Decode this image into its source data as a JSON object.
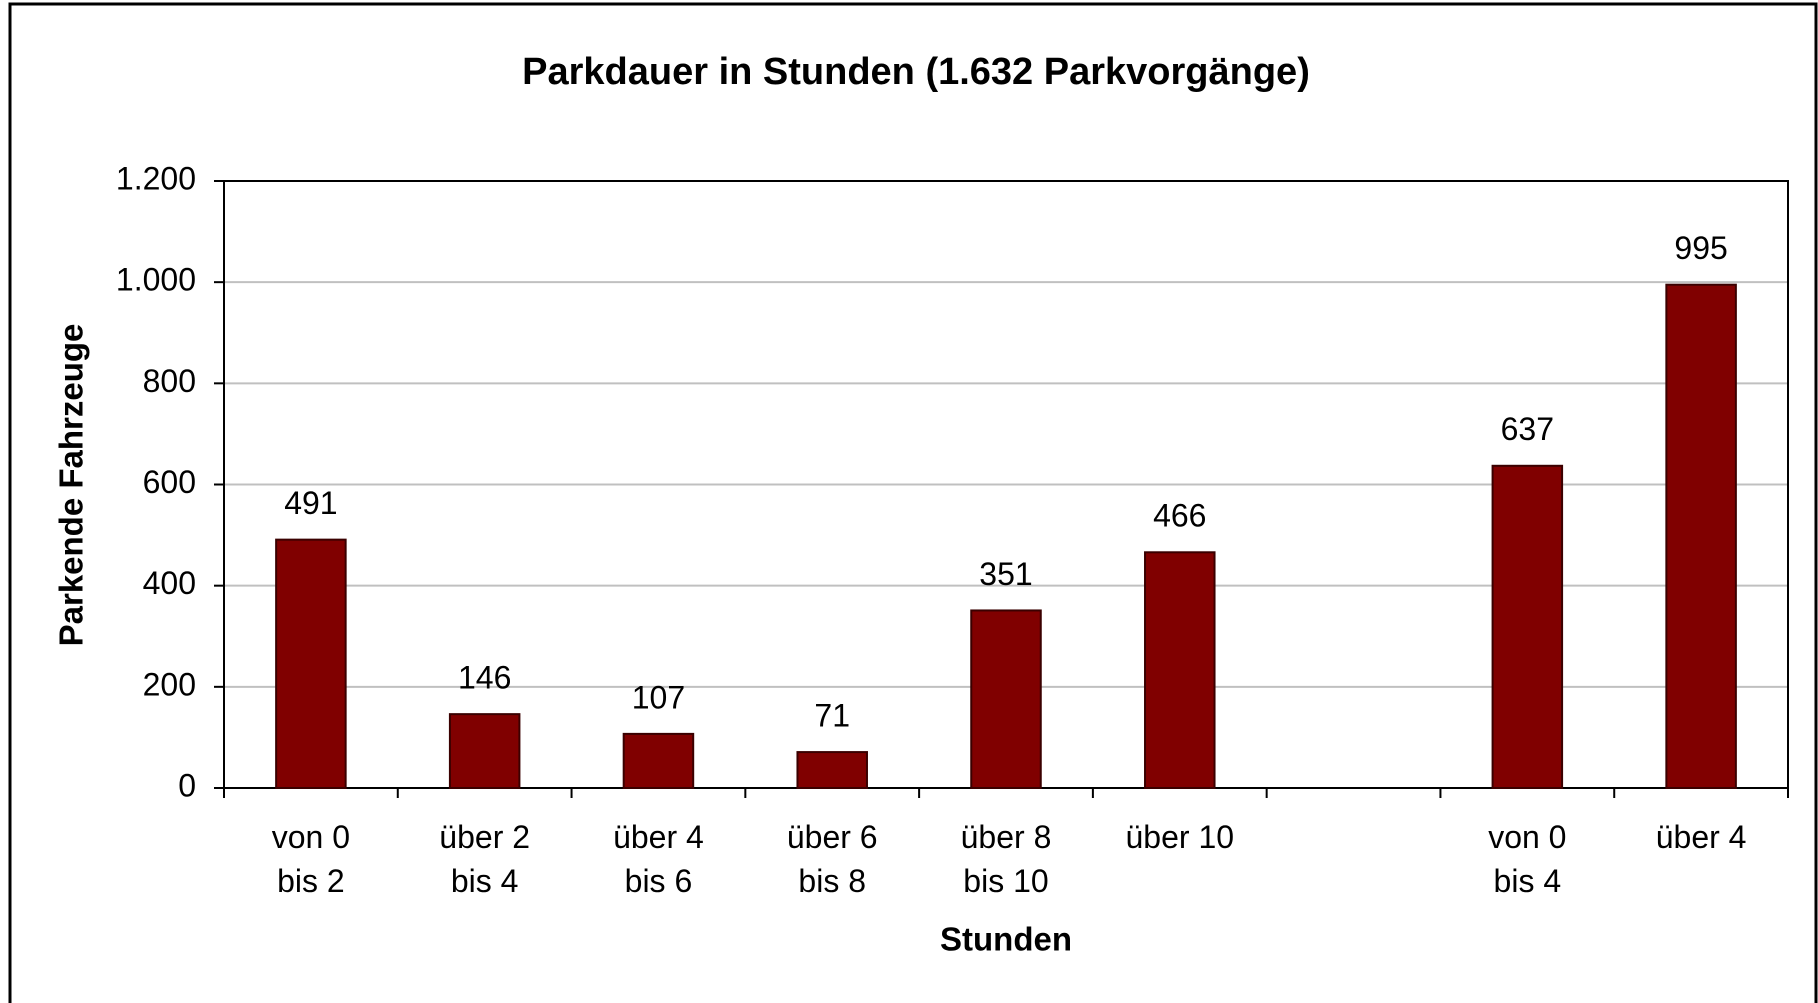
{
  "chart_data": {
    "type": "bar",
    "title": "Parkdauer in Stunden (1.632 Parkvorgänge)",
    "x_label": "Stunden",
    "y_label": "Parkende Fahrzeuge",
    "categories": [
      [
        "von 0",
        "bis 2"
      ],
      [
        "über 2",
        "bis 4"
      ],
      [
        "über 4",
        "bis 6"
      ],
      [
        "über 6",
        "bis 8"
      ],
      [
        "über 8",
        "bis 10"
      ],
      [
        "über 10"
      ],
      null,
      [
        "von 0",
        "bis 4"
      ],
      [
        "über 4"
      ]
    ],
    "values": [
      491,
      146,
      107,
      71,
      351,
      466,
      null,
      637,
      995
    ],
    "color": "#800000",
    "ylim": [
      0,
      1200
    ],
    "yticks": [
      0,
      200,
      400,
      600,
      800,
      {
        "value": 1000,
        "label": "1.000"
      },
      {
        "value": 1200,
        "label": "1.200"
      }
    ],
    "grid": true
  }
}
